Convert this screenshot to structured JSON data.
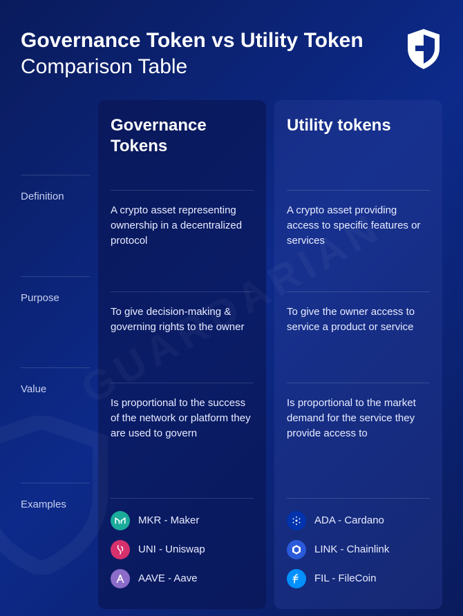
{
  "title_bold": "Governance Token vs Utility Token",
  "title_light": " Comparison Table",
  "columns": {
    "gov": "Governance Tokens",
    "util": "Utility tokens"
  },
  "rows": {
    "definition": {
      "label": "Definition",
      "gov": "A crypto asset representing ownership in a decentralized protocol",
      "util": "A crypto asset providing access to specific features or services"
    },
    "purpose": {
      "label": "Purpose",
      "gov": "To give decision-making & governing rights to the owner",
      "util": "To give the owner access to service a product or service"
    },
    "value": {
      "label": "Value",
      "gov": "Is proportional to the success of the network or platform they are used to govern",
      "util": "Is proportional to the market demand for the service they provide access to"
    },
    "examples": {
      "label": "Examples",
      "gov": [
        {
          "symbol": "MKR",
          "name": "Maker",
          "icon": "mkr",
          "bg": "#1aab9b"
        },
        {
          "symbol": "UNI",
          "name": "Uniswap",
          "icon": "uni",
          "bg": "#d6316d"
        },
        {
          "symbol": "AAVE",
          "name": "Aave",
          "icon": "aave",
          "bg": "#8b6cc9"
        }
      ],
      "util": [
        {
          "symbol": "ADA",
          "name": "Cardano",
          "icon": "ada",
          "bg": "#0033ad"
        },
        {
          "symbol": "LINK",
          "name": "Chainlink",
          "icon": "link",
          "bg": "#2a5ada"
        },
        {
          "symbol": "FIL",
          "name": "FileCoin",
          "icon": "fil",
          "bg": "#0090ff"
        }
      ]
    }
  },
  "styling": {
    "bg_gradient": [
      "#0a1b5c",
      "#0d2a8a",
      "#0a1b5c"
    ],
    "col1_bg": "rgba(10,20,80,0.6)",
    "col2_bg": "rgba(40,60,150,0.4)",
    "title_color": "#ffffff",
    "title_fontsize": 30,
    "col_header_fontsize": 24,
    "cell_fontsize": 15,
    "label_color": "#c8d0f0",
    "cell_color": "#e8ecff",
    "divider_color": "rgba(255,255,255,0.15)",
    "watermark_text": "GUARDARIAN",
    "watermark_color": "rgba(255,255,255,0.04)"
  }
}
